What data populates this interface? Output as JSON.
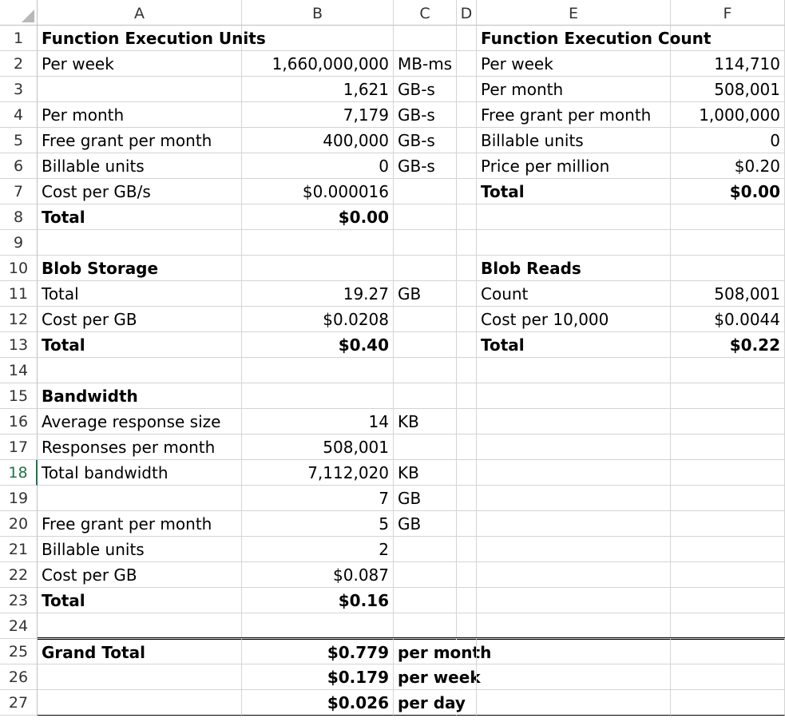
{
  "columns": [
    "A",
    "B",
    "C",
    "D",
    "E",
    "F"
  ],
  "rows": [
    {
      "n": "1",
      "A": "Function Execution Units",
      "B": "",
      "C": "",
      "E": "Function Execution Count",
      "F": "",
      "bold": [
        "A",
        "E"
      ]
    },
    {
      "n": "2",
      "A": "Per week",
      "B": "1,660,000,000",
      "C": "MB-ms",
      "E": "Per week",
      "F": "114,710"
    },
    {
      "n": "3",
      "A": "",
      "B": "1,621",
      "C": "GB-s",
      "E": "Per month",
      "F": "508,001"
    },
    {
      "n": "4",
      "A": "Per month",
      "B": "7,179",
      "C": "GB-s",
      "E": "Free grant per month",
      "F": "1,000,000"
    },
    {
      "n": "5",
      "A": "Free grant per month",
      "B": "400,000",
      "C": "GB-s",
      "E": "Billable units",
      "F": "0"
    },
    {
      "n": "6",
      "A": "Billable units",
      "B": "0",
      "C": "GB-s",
      "E": "Price per million",
      "F": "$0.20"
    },
    {
      "n": "7",
      "A": "Cost per GB/s",
      "B": "$0.000016",
      "C": "",
      "E": "Total",
      "F": "$0.00",
      "bold": [
        "E",
        "F"
      ]
    },
    {
      "n": "8",
      "A": "Total",
      "B": "$0.00",
      "C": "",
      "E": "",
      "F": "",
      "bold": [
        "A",
        "B"
      ]
    },
    {
      "n": "9",
      "A": "",
      "B": "",
      "C": "",
      "E": "",
      "F": ""
    },
    {
      "n": "10",
      "A": "Blob Storage",
      "B": "",
      "C": "",
      "E": "Blob Reads",
      "F": "",
      "bold": [
        "A",
        "E"
      ]
    },
    {
      "n": "11",
      "A": "Total",
      "B": "19.27",
      "C": "GB",
      "E": "Count",
      "F": "508,001"
    },
    {
      "n": "12",
      "A": "Cost per GB",
      "B": "$0.0208",
      "C": "",
      "E": "Cost per 10,000",
      "F": "$0.0044"
    },
    {
      "n": "13",
      "A": "Total",
      "B": "$0.40",
      "C": "",
      "E": "Total",
      "F": "$0.22",
      "bold": [
        "A",
        "B",
        "E",
        "F"
      ]
    },
    {
      "n": "14",
      "A": "",
      "B": "",
      "C": "",
      "E": "",
      "F": ""
    },
    {
      "n": "15",
      "A": "Bandwidth",
      "B": "",
      "C": "",
      "E": "",
      "F": "",
      "bold": [
        "A"
      ]
    },
    {
      "n": "16",
      "A": "Average response size",
      "B": "14",
      "C": "KB",
      "E": "",
      "F": ""
    },
    {
      "n": "17",
      "A": "Responses per month",
      "B": "508,001",
      "C": "",
      "E": "",
      "F": ""
    },
    {
      "n": "18",
      "A": "Total bandwidth",
      "B": "7,112,020",
      "C": "KB",
      "E": "",
      "F": ""
    },
    {
      "n": "19",
      "A": "",
      "B": "7",
      "C": "GB",
      "E": "",
      "F": ""
    },
    {
      "n": "20",
      "A": "Free grant per month",
      "B": "5",
      "C": "GB",
      "E": "",
      "F": ""
    },
    {
      "n": "21",
      "A": "Billable units",
      "B": "2",
      "C": "",
      "E": "",
      "F": ""
    },
    {
      "n": "22",
      "A": "Cost per GB",
      "B": "$0.087",
      "C": "",
      "E": "",
      "F": ""
    },
    {
      "n": "23",
      "A": "Total",
      "B": "$0.16",
      "C": "",
      "E": "",
      "F": "",
      "bold": [
        "A",
        "B"
      ]
    },
    {
      "n": "24",
      "A": "",
      "B": "",
      "C": "",
      "E": "",
      "F": ""
    },
    {
      "n": "25",
      "A": "Grand Total",
      "B": "$0.779",
      "C": "per month",
      "E": "",
      "F": "",
      "bold": [
        "A",
        "B",
        "C"
      ]
    },
    {
      "n": "26",
      "A": "",
      "B": "$0.179",
      "C": "per week",
      "E": "",
      "F": "",
      "bold": [
        "B",
        "C"
      ]
    },
    {
      "n": "27",
      "A": "",
      "B": "$0.026",
      "C": "per day",
      "E": "",
      "F": "",
      "bold": [
        "B",
        "C"
      ]
    }
  ],
  "selected_row": "18",
  "colors": {
    "selection_accent": "#217346",
    "gridline": "#d4d4d4",
    "header_border": "#bfbfbf"
  }
}
